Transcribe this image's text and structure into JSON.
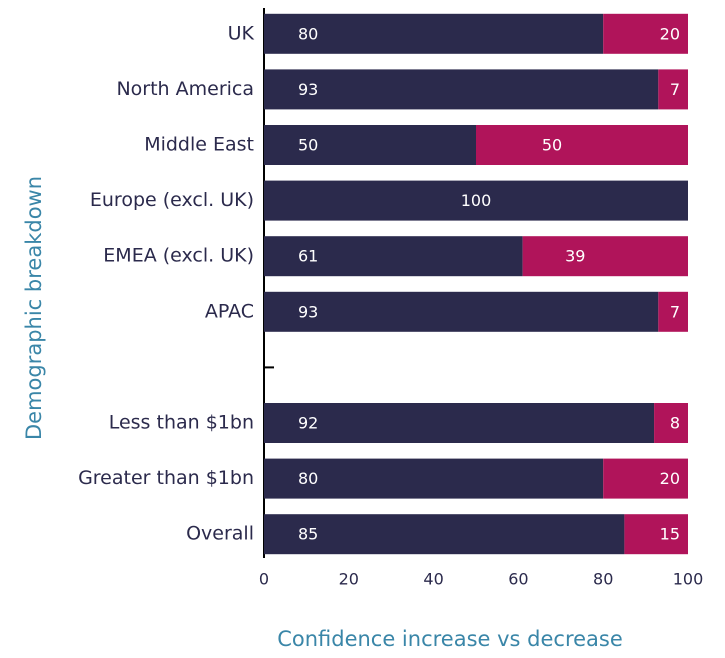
{
  "chart_data": {
    "type": "stacked-barh",
    "xlabel": "Confidence increase vs decrease",
    "ylabel": "Demographic breakdown",
    "categories": [
      "UK",
      "North America",
      "Middle East",
      "Europe (excl. UK)",
      "EMEA (excl. UK)",
      "APAC",
      null,
      "Less than $1bn",
      "Greater than $1bn",
      "Overall"
    ],
    "series": [
      {
        "color": "#2b2a4c",
        "values": [
          80,
          93,
          50,
          100,
          61,
          93,
          null,
          92,
          80,
          85
        ]
      },
      {
        "color": "#b0145a",
        "values": [
          20,
          7,
          50,
          0,
          39,
          7,
          null,
          8,
          20,
          15
        ]
      }
    ],
    "xlim": [
      0,
      100
    ],
    "xticks": [
      0,
      20,
      40,
      60,
      80,
      100
    ]
  }
}
